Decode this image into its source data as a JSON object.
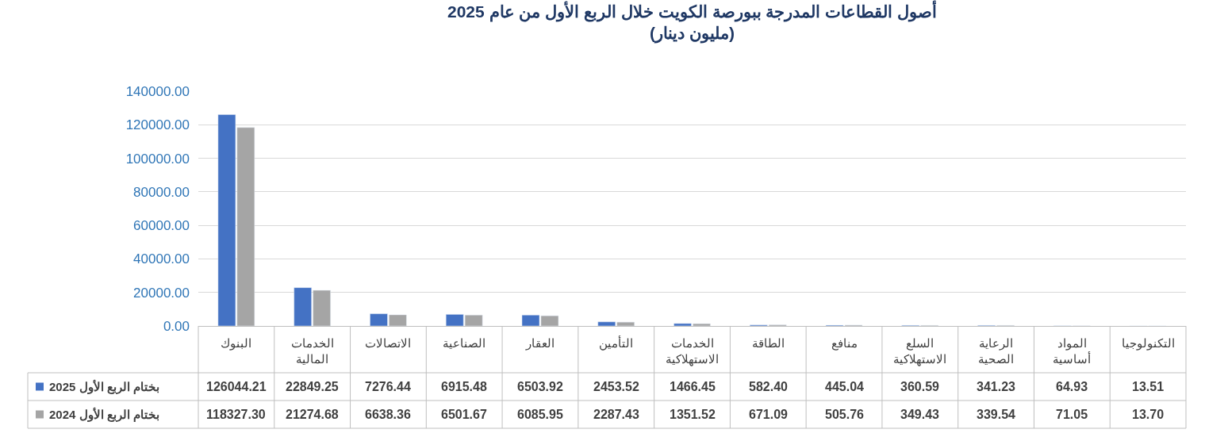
{
  "chart_data": {
    "type": "bar",
    "title": "أصول القطاعات المدرجة ببورصة الكويت خلال الربع الأول من عام 2025",
    "subtitle": "(مليون دينار)",
    "categories": [
      "البنوك",
      "الخدمات المالية",
      "الاتصالات",
      "الصناعية",
      "العقار",
      "التأمين",
      "الخدمات الاستهلاكية",
      "الطاقة",
      "منافع",
      "السلع الاستهلاكية",
      "الرعاية الصحية",
      "المواد أساسية",
      "التكنولوجيا"
    ],
    "series": [
      {
        "name": "بختام الربع الأول 2025",
        "color": "#4472c4",
        "values": [
          126044.21,
          22849.25,
          7276.44,
          6915.48,
          6503.92,
          2453.52,
          1466.45,
          582.4,
          445.04,
          360.59,
          341.23,
          64.93,
          13.51
        ],
        "value_labels": [
          "126044.21",
          "22849.25",
          "7276.44",
          "6915.48",
          "6503.92",
          "2453.52",
          "1466.45",
          "582.40",
          "445.04",
          "360.59",
          "341.23",
          "64.93",
          "13.51"
        ]
      },
      {
        "name": "بختام الربع الأول 2024",
        "color": "#a5a5a5",
        "values": [
          118327.3,
          21274.68,
          6638.36,
          6501.67,
          6085.95,
          2287.43,
          1351.52,
          671.09,
          505.76,
          349.43,
          339.54,
          71.05,
          13.7
        ],
        "value_labels": [
          "118327.30",
          "21274.68",
          "6638.36",
          "6501.67",
          "6085.95",
          "2287.43",
          "1351.52",
          "671.09",
          "505.76",
          "349.43",
          "339.54",
          "71.05",
          "13.70"
        ]
      }
    ],
    "ylim": [
      0,
      140000
    ],
    "yticks": [
      {
        "value": 0,
        "label": "0.00"
      },
      {
        "value": 20000,
        "label": "20000.00"
      },
      {
        "value": 40000,
        "label": "40000.00"
      },
      {
        "value": 60000,
        "label": "60000.00"
      },
      {
        "value": 80000,
        "label": "80000.00"
      },
      {
        "value": 100000,
        "label": "100000.00"
      },
      {
        "value": 120000,
        "label": "120000.00"
      },
      {
        "value": 140000,
        "label": "140000.00"
      }
    ],
    "grid": "y",
    "legend": "bottom left"
  }
}
